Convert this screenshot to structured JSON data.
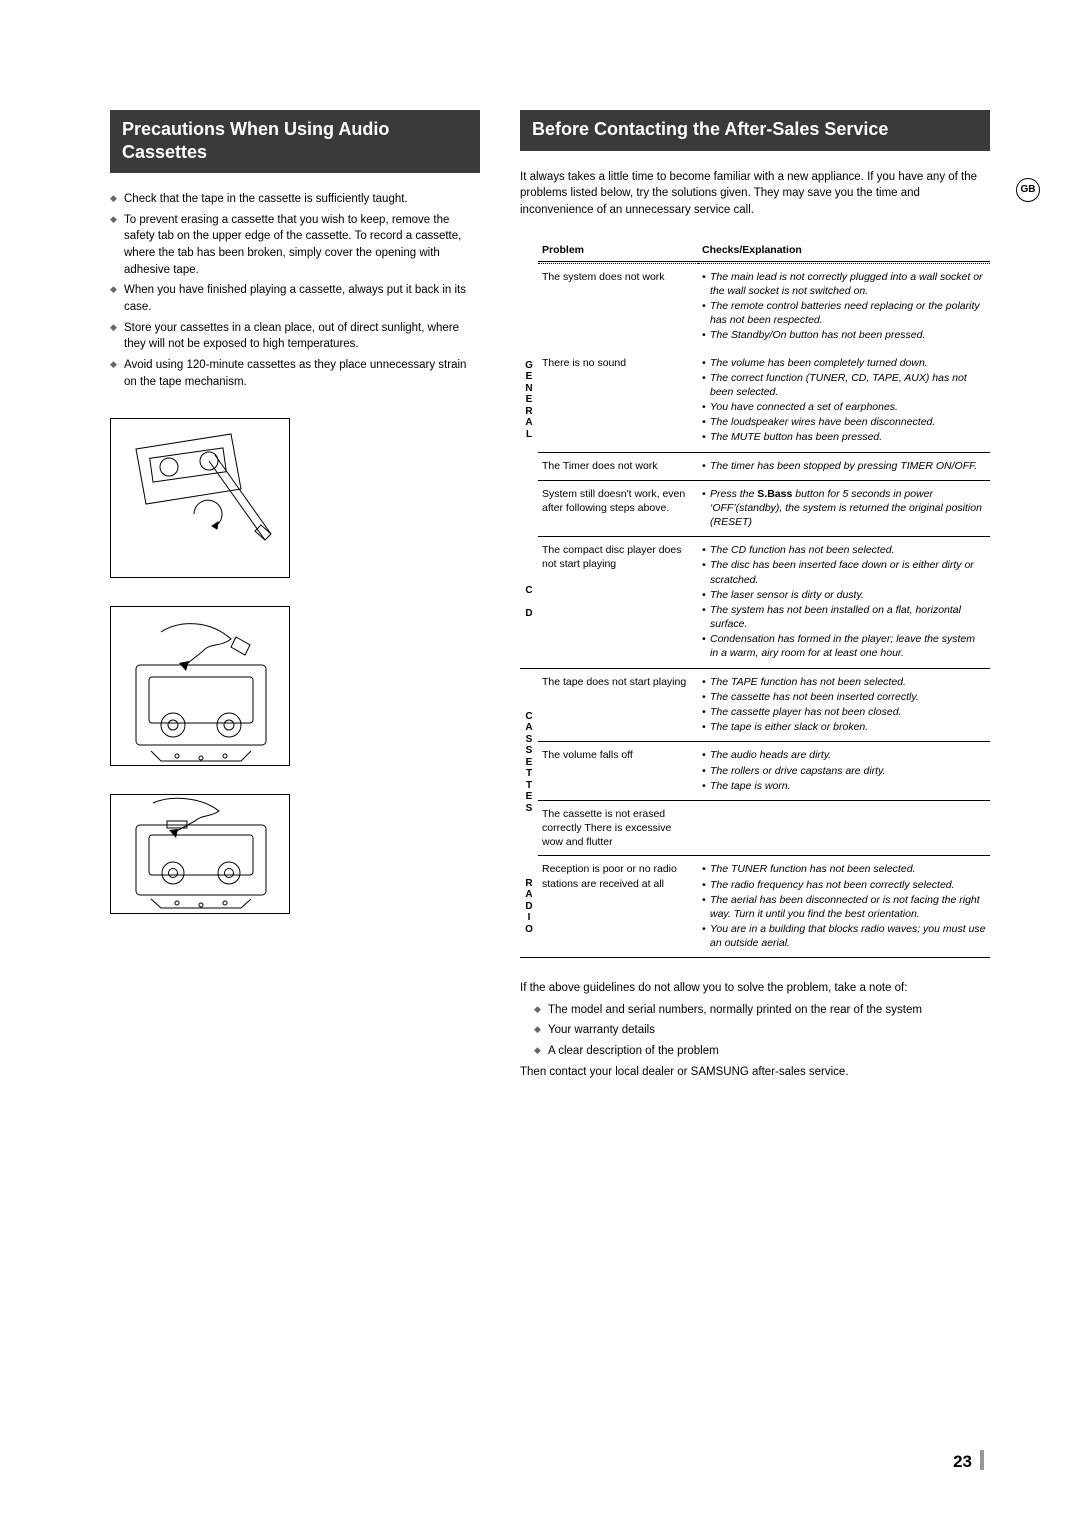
{
  "badge": "GB",
  "left": {
    "header": "Precautions When Using Audio Cassettes",
    "bullets": [
      "Check that the tape in the cassette is sufficiently taught.",
      "To prevent erasing a cassette that you wish to keep, remove the safety tab on the upper edge of the cassette. To record a cassette, where the tab has been broken, simply cover the opening with adhesive tape.",
      "When you have finished playing a cassette, always put it back in its case.",
      "Store your cassettes in a clean place, out of direct sunlight, where they will not be exposed to high temperatures.",
      "Avoid using 120-minute cassettes as they place unnecessary strain on the tape mechanism."
    ]
  },
  "right": {
    "header": "Before Contacting the After-Sales Service",
    "intro": "It always takes a little time to become familiar with a new appliance. If you have any of the problems listed below, try the solutions given. They may save you the time and inconvenience of an unnecessary service call.",
    "table_headers": {
      "problem": "Problem",
      "checks": "Checks/Explanation"
    },
    "groups": [
      {
        "cat": "GENERAL",
        "rows": [
          {
            "problem": "The system does not work",
            "checks": [
              "The main lead is not correctly plugged into a wall socket or the wall socket is not switched on.",
              "The remote control batteries need replacing or the polarity has not been respected.",
              "The  Standby/On button has not been pressed."
            ]
          },
          {
            "problem": "There is no sound",
            "checks": [
              "The volume has been completely turned down.",
              "The correct function (TUNER, CD, TAPE, AUX) has not been selected.",
              "You have connected a set of earphones.",
              "The loudspeaker wires have been disconnected.",
              "The MUTE button has been pressed."
            ]
          },
          {
            "problem": "The Timer does not work",
            "checks": [
              "The timer has been stopped by pressing TIMER ON/OFF."
            ]
          },
          {
            "problem": "System still doesn't work, even after following steps above.",
            "checks": [
              "Press the <span class=\"sbass\">S.Bass</span>  button for 5 seconds in power ‘OFF’(standby), the system is returned the original position (RESET)"
            ]
          }
        ]
      },
      {
        "cat": "CD",
        "rows": [
          {
            "problem": "The compact disc player does not start playing",
            "checks": [
              "The CD function has not been selected.",
              "The disc has been inserted face down or is either dirty or scratched.",
              "The laser sensor is dirty or dusty.",
              "The system has not been installed on a flat, horizontal surface.",
              "Condensation has formed in the player; leave the system in a warm, airy room for at least one hour."
            ]
          }
        ]
      },
      {
        "cat": "CASSETTES",
        "rows": [
          {
            "problem": "The tape does not start playing",
            "checks": [
              "The TAPE function has not been selected.",
              "The cassette has not been inserted correctly.",
              "The cassette player has not been closed.",
              "The tape is either slack or broken."
            ]
          },
          {
            "problem": "The volume falls off",
            "checks": [
              "The audio heads are dirty.",
              "The rollers or drive capstans are dirty.",
              "The tape is worn."
            ]
          },
          {
            "problem": "The cassette is not erased correctly There is excessive wow and flutter",
            "checks": []
          }
        ]
      },
      {
        "cat": "RADIO",
        "rows": [
          {
            "problem": "Reception is poor or no radio stations are received at all",
            "checks": [
              "The TUNER function has not been selected.",
              "The radio frequency has not been correctly selected.",
              "The aerial has been disconnected or is not facing the right way. Turn it until you find the best orientation.",
              "You are in a building that blocks radio waves; you must use an outside aerial."
            ]
          }
        ]
      }
    ],
    "closing_intro": "If the above guidelines do not allow you to solve the problem, take a note of:",
    "closing_bullets": [
      "The model and serial numbers, normally printed on the rear of the system",
      "Your warranty details",
      "A clear description of the problem"
    ],
    "closing_outro": "Then contact your local dealer or SAMSUNG after-sales service."
  },
  "page_number": "23"
}
